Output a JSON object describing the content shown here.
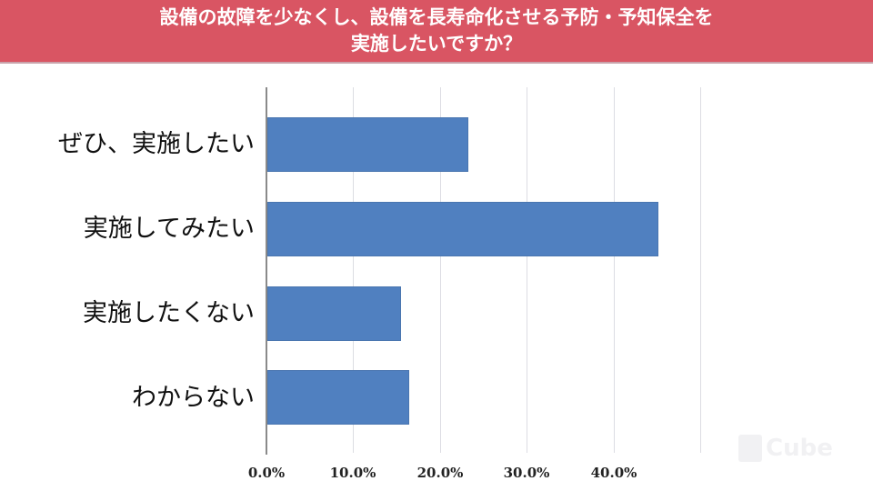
{
  "header": {
    "title_line1": "設備の故障を少なくし、設備を長寿命化させる予防・予知保全を",
    "title_line2": "実施したいですか？",
    "background_color": "#d95563"
  },
  "watermark": {
    "text": "Cube"
  },
  "chart_data": {
    "type": "bar",
    "orientation": "horizontal",
    "title": "設備の故障を少なくし、設備を長寿命化させる予防・予知保全を実施したいですか？",
    "categories": [
      "ぜひ、実施したい",
      "実施してみたい",
      "実施したくない",
      "わからない"
    ],
    "values": [
      23.2,
      45.1,
      15.4,
      16.4
    ],
    "unit": "%",
    "xlabel": "",
    "ylabel": "",
    "xlim": [
      0,
      50
    ],
    "x_ticks": [
      "0.0%",
      "10.0%",
      "20.0%",
      "30.0%",
      "40.0%"
    ],
    "grid": true,
    "legend": "none",
    "bar_color": "#5080c0"
  }
}
